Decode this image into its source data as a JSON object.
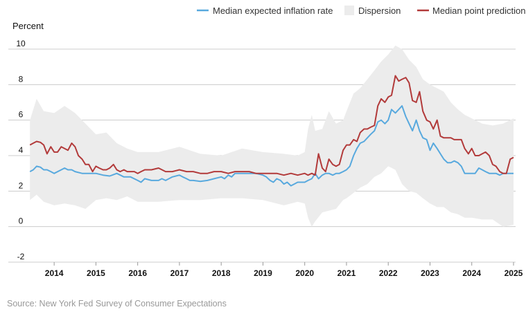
{
  "chart_data": {
    "type": "line",
    "unit_label": "Percent",
    "source": "Source: New York Fed Survey of Consumer Expectations",
    "ylim": [
      -2,
      10
    ],
    "y_ticks": [
      "10",
      "8",
      "6",
      "4",
      "2",
      "0",
      "-2"
    ],
    "x_ticks": [
      "2014",
      "2015",
      "2016",
      "2017",
      "2018",
      "2019",
      "2020",
      "2021",
      "2022",
      "2023",
      "2024",
      "2025"
    ],
    "x_range": [
      2013.4,
      2025.05
    ],
    "grid": true,
    "legend_position": "top-right",
    "legend": {
      "median_label": "Median expected inflation rate",
      "dispersion_label": "Dispersion",
      "point_label": "Median point prediction"
    },
    "colors": {
      "median": "#58a9de",
      "dispersion": "#ececec",
      "point": "#b23a3a",
      "grid": "#cccccc"
    },
    "series": [
      {
        "name": "Median expected inflation rate",
        "x": [
          2013.42,
          2013.5,
          2013.58,
          2013.67,
          2013.75,
          2013.83,
          2013.92,
          2014.0,
          2014.17,
          2014.25,
          2014.33,
          2014.42,
          2014.5,
          2014.67,
          2014.83,
          2015.0,
          2015.17,
          2015.33,
          2015.5,
          2015.67,
          2015.83,
          2016.0,
          2016.08,
          2016.17,
          2016.33,
          2016.5,
          2016.58,
          2016.67,
          2016.83,
          2017.0,
          2017.08,
          2017.17,
          2017.25,
          2017.33,
          2017.5,
          2017.67,
          2017.83,
          2018.0,
          2018.08,
          2018.17,
          2018.25,
          2018.33,
          2018.5,
          2018.67,
          2018.83,
          2019.0,
          2019.08,
          2019.17,
          2019.25,
          2019.33,
          2019.42,
          2019.5,
          2019.58,
          2019.67,
          2019.75,
          2019.83,
          2019.92,
          2020.0,
          2020.08,
          2020.17,
          2020.25,
          2020.33,
          2020.42,
          2020.5,
          2020.58,
          2020.67,
          2020.75,
          2020.83,
          2020.92,
          2021.0,
          2021.08,
          2021.17,
          2021.25,
          2021.33,
          2021.42,
          2021.5,
          2021.58,
          2021.67,
          2021.75,
          2021.83,
          2021.92,
          2022.0,
          2022.08,
          2022.17,
          2022.25,
          2022.33,
          2022.42,
          2022.5,
          2022.58,
          2022.67,
          2022.75,
          2022.83,
          2022.92,
          2023.0,
          2023.08,
          2023.17,
          2023.25,
          2023.33,
          2023.42,
          2023.5,
          2023.58,
          2023.67,
          2023.75,
          2023.83,
          2023.92,
          2024.0,
          2024.08,
          2024.17,
          2024.25,
          2024.33,
          2024.42,
          2024.5,
          2024.58,
          2024.67,
          2024.75,
          2024.83,
          2024.92,
          2025.0
        ],
        "values": [
          3.1,
          3.2,
          3.4,
          3.35,
          3.2,
          3.2,
          3.1,
          3.0,
          3.2,
          3.3,
          3.2,
          3.2,
          3.1,
          3.0,
          3.0,
          3.0,
          2.9,
          2.85,
          3.0,
          2.8,
          2.8,
          2.6,
          2.5,
          2.7,
          2.6,
          2.6,
          2.7,
          2.6,
          2.8,
          2.9,
          2.8,
          2.7,
          2.6,
          2.6,
          2.55,
          2.6,
          2.7,
          2.8,
          2.7,
          2.9,
          2.8,
          3.0,
          3.0,
          3.0,
          3.0,
          2.9,
          2.8,
          2.6,
          2.5,
          2.7,
          2.6,
          2.4,
          2.5,
          2.3,
          2.4,
          2.5,
          2.5,
          2.5,
          2.6,
          2.7,
          3.0,
          2.7,
          2.9,
          3.0,
          3.0,
          2.9,
          3.0,
          3.0,
          3.1,
          3.2,
          3.4,
          4.0,
          4.4,
          4.7,
          4.8,
          5.0,
          5.2,
          5.4,
          5.9,
          6.0,
          5.8,
          6.0,
          6.6,
          6.4,
          6.6,
          6.8,
          6.2,
          5.8,
          5.4,
          6.0,
          5.4,
          5.0,
          4.9,
          4.3,
          4.7,
          4.4,
          4.1,
          3.8,
          3.6,
          3.6,
          3.7,
          3.6,
          3.4,
          3.0,
          3.0,
          3.0,
          3.0,
          3.3,
          3.2,
          3.1,
          3.0,
          3.0,
          3.0,
          2.9,
          3.0,
          3.0,
          3.0,
          3.0
        ]
      },
      {
        "name": "Median point prediction",
        "x": [
          2013.42,
          2013.5,
          2013.58,
          2013.67,
          2013.75,
          2013.83,
          2013.92,
          2014.0,
          2014.08,
          2014.17,
          2014.25,
          2014.33,
          2014.42,
          2014.5,
          2014.58,
          2014.67,
          2014.75,
          2014.83,
          2014.92,
          2015.0,
          2015.08,
          2015.17,
          2015.25,
          2015.33,
          2015.42,
          2015.5,
          2015.58,
          2015.67,
          2015.75,
          2015.83,
          2015.92,
          2016.0,
          2016.08,
          2016.17,
          2016.33,
          2016.5,
          2016.67,
          2016.83,
          2017.0,
          2017.17,
          2017.33,
          2017.5,
          2017.67,
          2017.83,
          2018.0,
          2018.17,
          2018.33,
          2018.5,
          2018.67,
          2018.83,
          2019.0,
          2019.17,
          2019.33,
          2019.5,
          2019.67,
          2019.83,
          2020.0,
          2020.08,
          2020.17,
          2020.25,
          2020.33,
          2020.42,
          2020.5,
          2020.58,
          2020.67,
          2020.75,
          2020.83,
          2020.92,
          2021.0,
          2021.08,
          2021.17,
          2021.25,
          2021.33,
          2021.42,
          2021.5,
          2021.58,
          2021.67,
          2021.75,
          2021.83,
          2021.92,
          2022.0,
          2022.08,
          2022.17,
          2022.25,
          2022.33,
          2022.42,
          2022.5,
          2022.58,
          2022.67,
          2022.75,
          2022.83,
          2022.92,
          2023.0,
          2023.08,
          2023.17,
          2023.25,
          2023.33,
          2023.42,
          2023.5,
          2023.58,
          2023.67,
          2023.75,
          2023.83,
          2023.92,
          2024.0,
          2024.08,
          2024.17,
          2024.25,
          2024.33,
          2024.42,
          2024.5,
          2024.58,
          2024.67,
          2024.75,
          2024.83,
          2024.92,
          2025.0
        ],
        "values": [
          4.6,
          4.7,
          4.8,
          4.75,
          4.6,
          4.1,
          4.5,
          4.2,
          4.2,
          4.5,
          4.4,
          4.3,
          4.7,
          4.5,
          4.0,
          3.8,
          3.5,
          3.5,
          3.1,
          3.4,
          3.3,
          3.2,
          3.2,
          3.3,
          3.5,
          3.2,
          3.1,
          3.2,
          3.1,
          3.1,
          3.1,
          3.0,
          3.1,
          3.2,
          3.2,
          3.3,
          3.1,
          3.1,
          3.2,
          3.1,
          3.1,
          3.0,
          3.0,
          3.1,
          3.1,
          3.0,
          3.1,
          3.1,
          3.1,
          3.0,
          3.0,
          3.0,
          3.0,
          2.9,
          3.0,
          2.9,
          3.0,
          2.9,
          3.0,
          2.9,
          4.1,
          3.3,
          3.1,
          3.8,
          3.5,
          3.4,
          3.5,
          4.3,
          4.6,
          4.6,
          4.9,
          4.8,
          5.3,
          5.5,
          5.5,
          5.6,
          5.7,
          6.8,
          7.2,
          7.0,
          7.3,
          7.4,
          8.5,
          8.2,
          8.3,
          8.4,
          8.1,
          7.1,
          7.0,
          7.6,
          6.5,
          6.0,
          5.9,
          5.5,
          6.0,
          5.1,
          5.0,
          5.0,
          5.0,
          4.9,
          4.9,
          4.9,
          4.4,
          4.1,
          4.4,
          4.0,
          4.0,
          4.1,
          4.2,
          4.0,
          3.5,
          3.4,
          3.1,
          3.0,
          3.0,
          3.8,
          3.9
        ]
      }
    ],
    "dispersion": {
      "name": "Dispersion",
      "x": [
        2013.42,
        2013.58,
        2013.75,
        2014.0,
        2014.25,
        2014.5,
        2014.75,
        2015.0,
        2015.25,
        2015.5,
        2015.75,
        2016.0,
        2016.5,
        2017.0,
        2017.5,
        2018.0,
        2018.5,
        2019.0,
        2019.5,
        2019.83,
        2020.0,
        2020.08,
        2020.17,
        2020.25,
        2020.42,
        2020.58,
        2020.75,
        2020.92,
        2021.0,
        2021.17,
        2021.33,
        2021.5,
        2021.67,
        2021.83,
        2022.0,
        2022.17,
        2022.33,
        2022.5,
        2022.67,
        2022.83,
        2023.0,
        2023.17,
        2023.33,
        2023.5,
        2023.67,
        2023.83,
        2024.0,
        2024.25,
        2024.5,
        2024.75,
        2025.0
      ],
      "upper": [
        6.0,
        7.2,
        6.5,
        6.4,
        6.8,
        6.4,
        5.8,
        5.2,
        5.3,
        4.7,
        4.4,
        4.2,
        4.2,
        4.5,
        4.1,
        4.0,
        4.4,
        4.2,
        4.1,
        4.0,
        4.2,
        5.5,
        6.3,
        5.4,
        5.5,
        6.5,
        5.8,
        6.0,
        6.5,
        7.5,
        7.8,
        8.3,
        8.8,
        9.3,
        9.7,
        10.2,
        10.0,
        9.4,
        9.0,
        8.3,
        8.0,
        7.8,
        7.6,
        7.0,
        6.6,
        6.3,
        6.1,
        5.8,
        5.7,
        5.8,
        6.1
      ],
      "lower": [
        1.5,
        1.8,
        1.4,
        1.2,
        1.3,
        1.2,
        1.0,
        1.5,
        1.6,
        1.5,
        1.7,
        1.4,
        1.4,
        1.5,
        1.5,
        1.6,
        1.6,
        1.5,
        1.2,
        1.4,
        1.3,
        0.5,
        0.0,
        0.3,
        0.8,
        0.9,
        1.0,
        1.5,
        1.6,
        1.9,
        2.2,
        2.4,
        2.8,
        3.0,
        3.4,
        3.2,
        2.4,
        2.0,
        1.9,
        1.6,
        1.3,
        1.1,
        1.1,
        0.8,
        0.7,
        0.5,
        0.5,
        0.4,
        0.4,
        0.0,
        0.1
      ]
    }
  }
}
